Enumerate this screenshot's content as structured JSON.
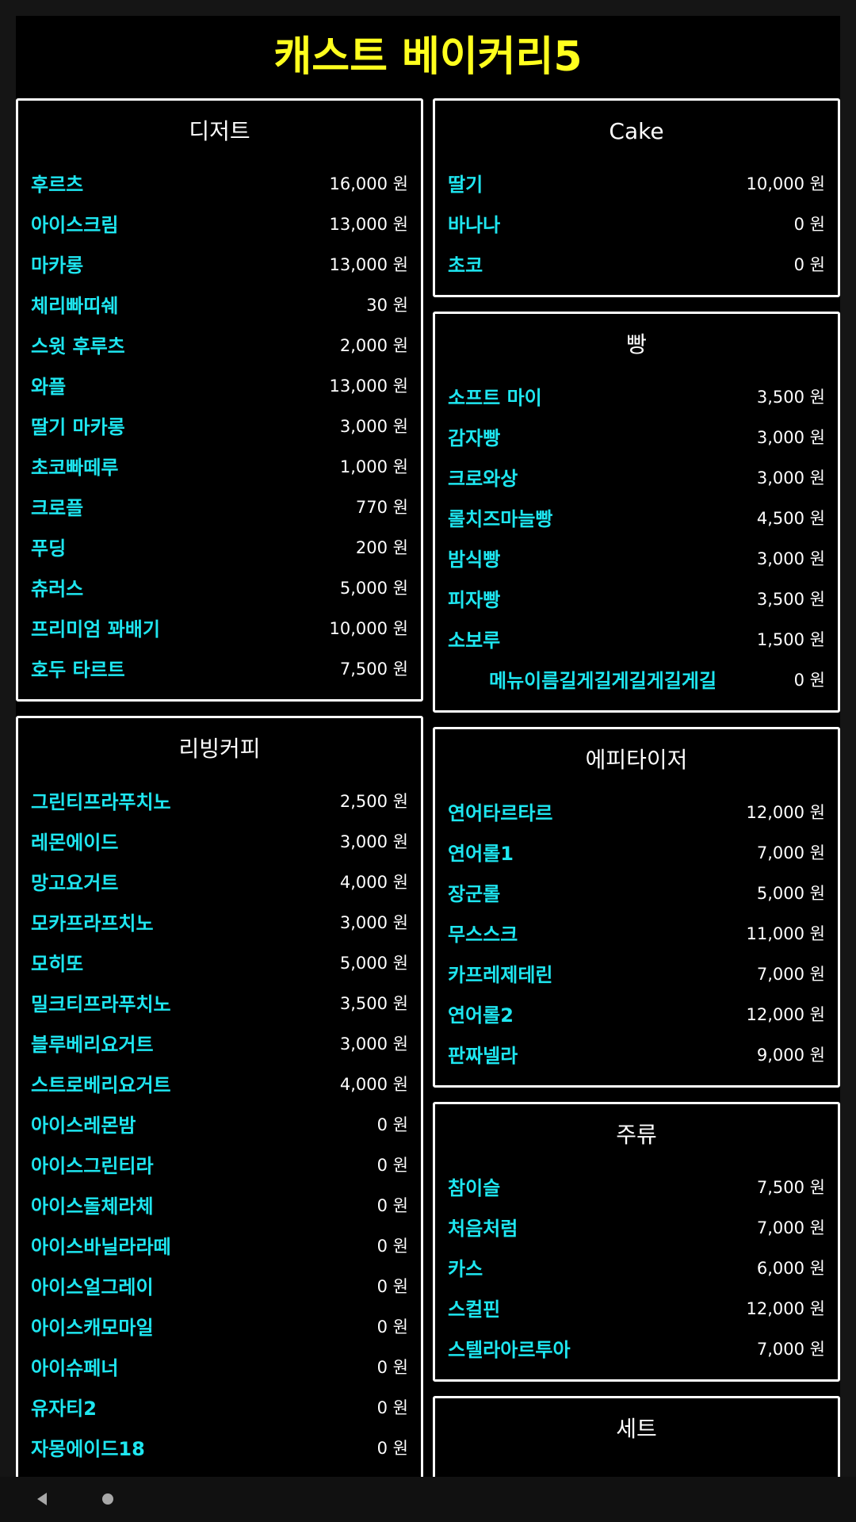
{
  "title": "캐스트 베이커리5",
  "colors": {
    "title": "#ffff1e",
    "item_name": "#1ee6f0",
    "price": "#ffffff",
    "panel_border": "#ffffff",
    "background": "#000000"
  },
  "left_panels": [
    {
      "title": "디저트",
      "items": [
        {
          "name": "후르츠",
          "price": "16,000 원"
        },
        {
          "name": "아이스크림",
          "price": "13,000 원"
        },
        {
          "name": "마카롱",
          "price": "13,000 원"
        },
        {
          "name": "체리빠띠쉐",
          "price": "30 원"
        },
        {
          "name": "스윗 후루츠",
          "price": "2,000 원"
        },
        {
          "name": "와플",
          "price": "13,000 원"
        },
        {
          "name": "딸기 마카롱",
          "price": "3,000 원"
        },
        {
          "name": "초코빠떼루",
          "price": "1,000 원"
        },
        {
          "name": "크로플",
          "price": "770 원"
        },
        {
          "name": "푸딩",
          "price": "200 원"
        },
        {
          "name": "츄러스",
          "price": "5,000 원"
        },
        {
          "name": "프리미엄 꽈배기",
          "price": "10,000 원"
        },
        {
          "name": "호두 타르트",
          "price": "7,500 원"
        }
      ]
    },
    {
      "title": "리빙커피",
      "items": [
        {
          "name": "그린티프라푸치노",
          "price": "2,500 원"
        },
        {
          "name": "레몬에이드",
          "price": "3,000 원"
        },
        {
          "name": "망고요거트",
          "price": "4,000 원"
        },
        {
          "name": "모카프라프치노",
          "price": "3,000 원"
        },
        {
          "name": "모히또",
          "price": "5,000 원"
        },
        {
          "name": "밀크티프라푸치노",
          "price": "3,500 원"
        },
        {
          "name": "블루베리요거트",
          "price": "3,000 원"
        },
        {
          "name": "스트로베리요거트",
          "price": "4,000 원"
        },
        {
          "name": "아이스레몬밤",
          "price": "0 원"
        },
        {
          "name": "아이스그린티라",
          "price": "0 원"
        },
        {
          "name": "아이스돌체라체",
          "price": "0 원"
        },
        {
          "name": "아이스바닐라라떼",
          "price": "0 원"
        },
        {
          "name": "아이스얼그레이",
          "price": "0 원"
        },
        {
          "name": "아이스캐모마일",
          "price": "0 원"
        },
        {
          "name": "아이슈페너",
          "price": "0 원"
        },
        {
          "name": "유자티2",
          "price": "0 원"
        },
        {
          "name": "자몽에이드18",
          "price": "0 원"
        }
      ]
    }
  ],
  "right_panels": [
    {
      "title": "Cake",
      "items": [
        {
          "name": "딸기",
          "price": "10,000 원"
        },
        {
          "name": "바나나",
          "price": "0 원"
        },
        {
          "name": "초코",
          "price": "0 원"
        }
      ]
    },
    {
      "title": "빵",
      "items": [
        {
          "name": "소프트 마이",
          "price": "3,500 원"
        },
        {
          "name": "감자빵",
          "price": "3,000 원"
        },
        {
          "name": "크로와상",
          "price": "3,000 원"
        },
        {
          "name": "롤치즈마늘빵",
          "price": "4,500 원"
        },
        {
          "name": "밤식빵",
          "price": "3,000 원"
        },
        {
          "name": "피자빵",
          "price": "3,500 원"
        },
        {
          "name": "소보루",
          "price": "1,500 원"
        },
        {
          "name": "메뉴이름길게길게길게길게길게",
          "price": "0 원",
          "indent": true
        }
      ]
    },
    {
      "title": "에피타이저",
      "items": [
        {
          "name": "연어타르타르",
          "price": "12,000 원"
        },
        {
          "name": "연어롤1",
          "price": "7,000 원"
        },
        {
          "name": "장군롤",
          "price": "5,000 원"
        },
        {
          "name": "무스스크",
          "price": "11,000 원"
        },
        {
          "name": "카프레제테린",
          "price": "7,000 원"
        },
        {
          "name": "연어롤2",
          "price": "12,000 원"
        },
        {
          "name": "판짜넬라",
          "price": "9,000 원"
        }
      ]
    },
    {
      "title": "주류",
      "items": [
        {
          "name": "참이슬",
          "price": "7,500 원"
        },
        {
          "name": "처음처럼",
          "price": "7,000 원"
        },
        {
          "name": "카스",
          "price": "6,000 원"
        },
        {
          "name": "스컬핀",
          "price": "12,000 원"
        },
        {
          "name": "스텔라아르투아",
          "price": "7,000 원"
        }
      ]
    },
    {
      "title": "세트",
      "items": []
    }
  ],
  "nav": {
    "back_icon": "triangle-left",
    "home_icon": "circle"
  }
}
